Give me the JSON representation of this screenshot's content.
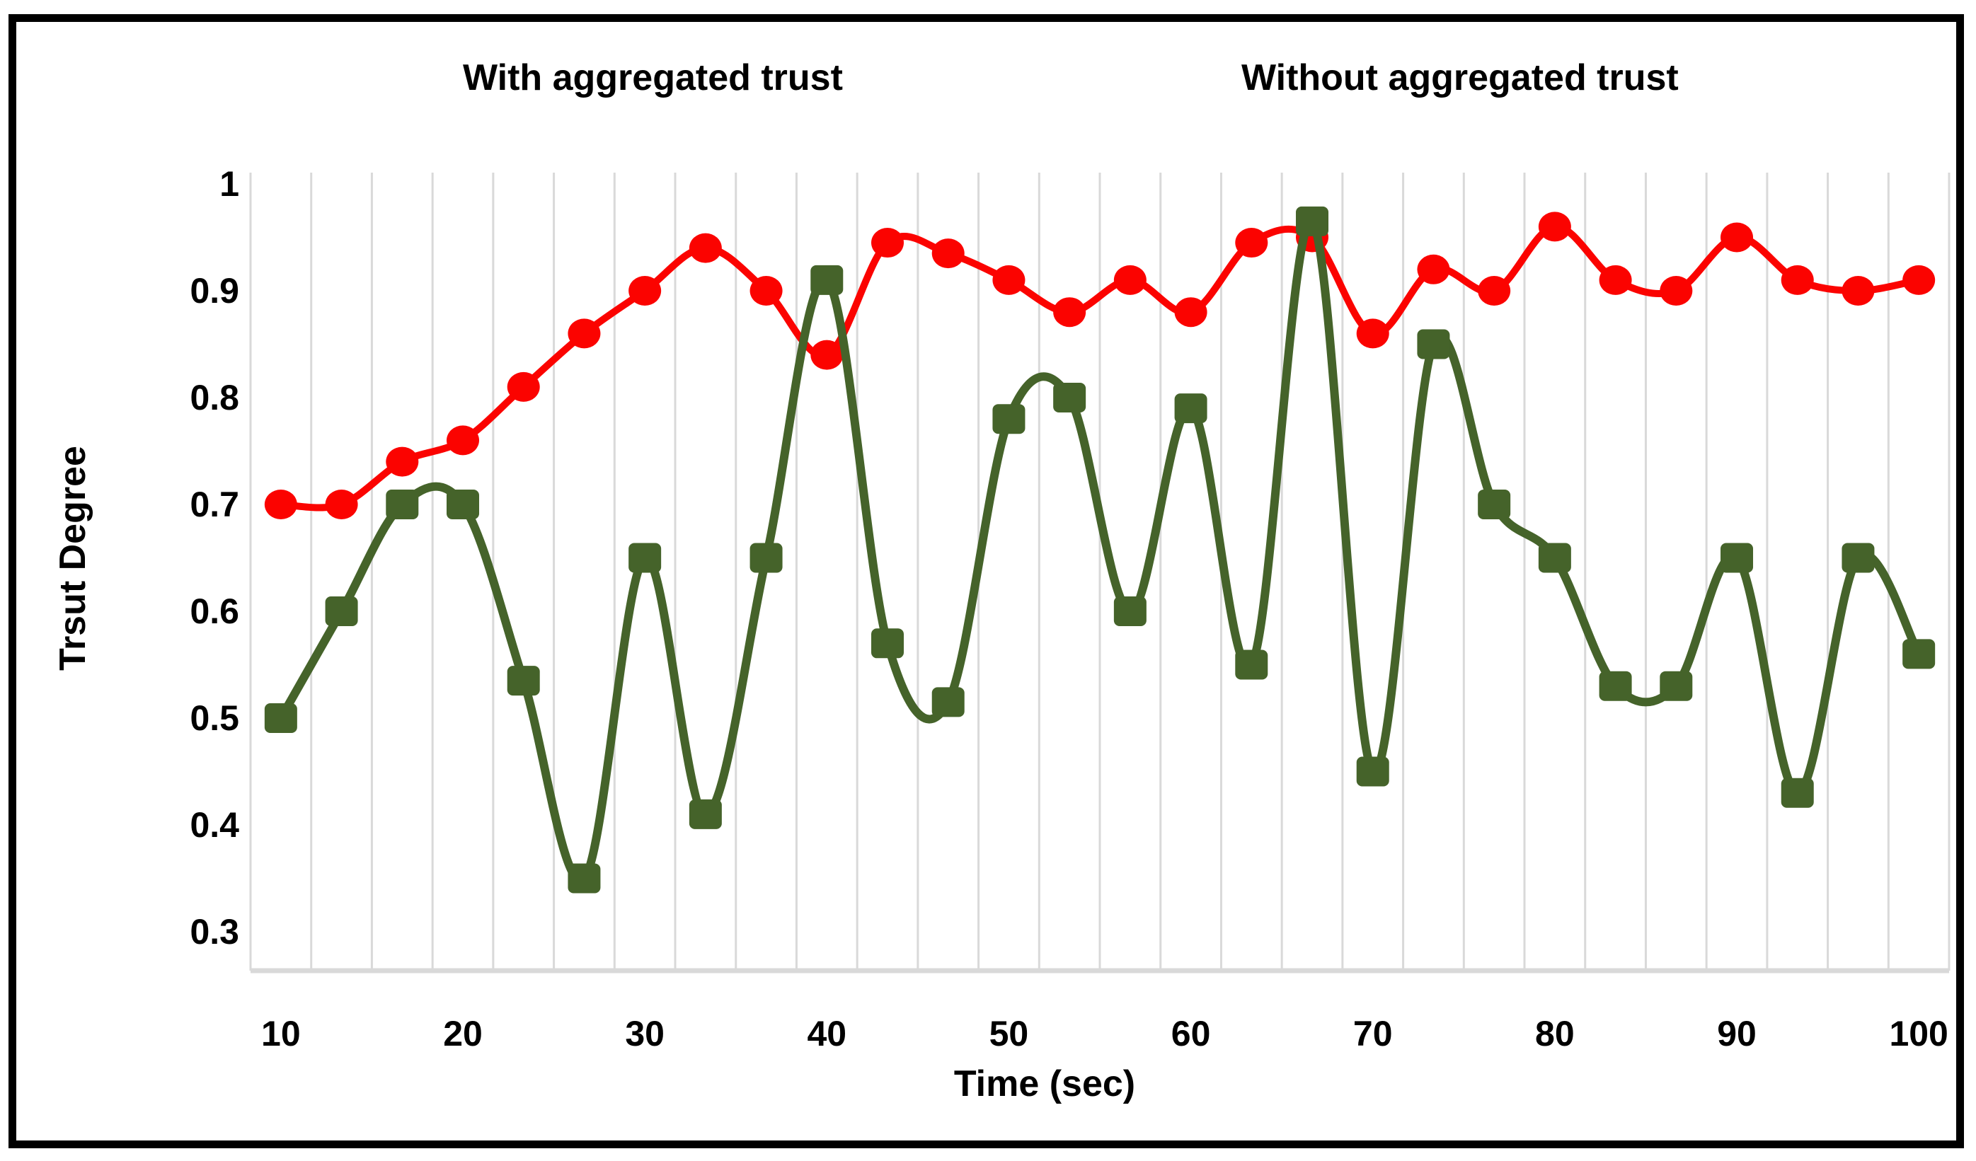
{
  "legend": {
    "series1_label": "With aggregated trust",
    "series2_label": "Without aggregated trust"
  },
  "axes": {
    "y_title": "Trsut Degree",
    "x_title": "Time (sec)",
    "y_tick_labels": [
      "1",
      "0.9",
      "0.8",
      "0.7",
      "0.6",
      "0.5",
      "0.4",
      "0.3"
    ],
    "x_tick_labels": [
      "10",
      "20",
      "30",
      "40",
      "50",
      "60",
      "70",
      "80",
      "90",
      "100"
    ]
  },
  "colors": {
    "series1": "#fb0300",
    "series2": "#45632a",
    "gridline": "#d9d9d9",
    "axis_line": "#d9d9d9",
    "text": "#000000",
    "frame": "#000000"
  },
  "chart_data": {
    "type": "line",
    "x": [
      10,
      13.3,
      16.7,
      20,
      23.3,
      26.7,
      30,
      33.3,
      36.7,
      40,
      43.3,
      46.7,
      50,
      53.3,
      56.7,
      60,
      63.3,
      66.7,
      70,
      73.3,
      76.7,
      80,
      83.3,
      86.7,
      90,
      93.3,
      96.7,
      100
    ],
    "series": [
      {
        "name": "With aggregated trust",
        "marker": "circle",
        "color": "#fb0300",
        "values": [
          0.7,
          0.7,
          0.74,
          0.76,
          0.81,
          0.86,
          0.9,
          0.94,
          0.9,
          0.84,
          0.945,
          0.935,
          0.91,
          0.88,
          0.91,
          0.88,
          0.945,
          0.95,
          0.86,
          0.92,
          0.9,
          0.96,
          0.91,
          0.9,
          0.95,
          0.91,
          0.9,
          0.91
        ]
      },
      {
        "name": "Without aggregated trust",
        "marker": "square",
        "color": "#45632a",
        "values": [
          0.5,
          0.6,
          0.7,
          0.7,
          0.535,
          0.35,
          0.65,
          0.41,
          0.65,
          0.91,
          0.57,
          0.515,
          0.78,
          0.8,
          0.6,
          0.79,
          0.55,
          0.965,
          0.45,
          0.85,
          0.7,
          0.65,
          0.53,
          0.53,
          0.65,
          0.43,
          0.65,
          0.56
        ]
      }
    ],
    "title": "",
    "xlabel": "Time (sec)",
    "ylabel": "Trsut Degree",
    "ylim": [
      0.3,
      1.0
    ],
    "xlim": [
      10,
      100
    ],
    "grid": "vertical-only",
    "legend_position": "top",
    "line_style": "smoothed"
  }
}
